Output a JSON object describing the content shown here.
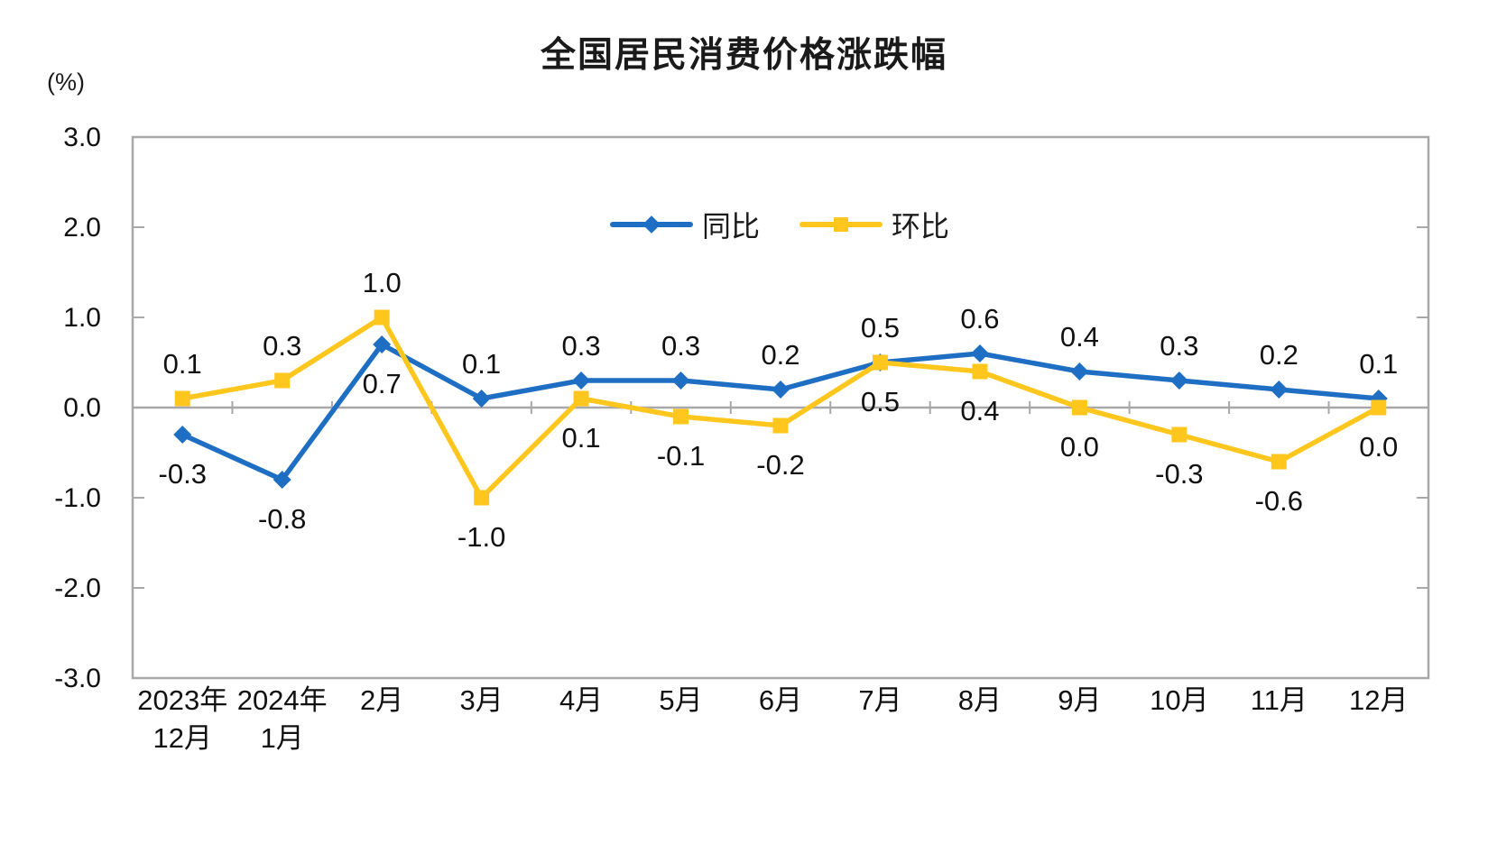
{
  "title": "全国居民消费价格涨跌幅",
  "unit_label": "(%)",
  "colors": {
    "yoy_blue": "#1E6EC3",
    "mom_yellow": "#FFC61E",
    "axis_gray": "#A8A8A8",
    "text_black": "#111111"
  },
  "legend": {
    "items": [
      {
        "label": "同比",
        "marker": "diamond"
      },
      {
        "label": "环比",
        "marker": "square"
      }
    ]
  },
  "chart_data": {
    "type": "line",
    "title": "全国居民消费价格涨跌幅",
    "ylabel": "(%)",
    "xlabel": "",
    "ylim": [
      -3.0,
      3.0
    ],
    "yticks": [
      "3.0",
      "2.0",
      "1.0",
      "0.0",
      "-1.0",
      "-2.0",
      "-3.0"
    ],
    "grid": false,
    "legend_position": "top-center-inside",
    "categories": [
      "2023年\n12月",
      "2024年\n1月",
      "2月",
      "3月",
      "4月",
      "5月",
      "6月",
      "7月",
      "8月",
      "9月",
      "10月",
      "11月",
      "12月"
    ],
    "series": [
      {
        "name": "同比",
        "marker": "diamond",
        "color": "#1E6EC3",
        "values": [
          -0.3,
          -0.8,
          0.7,
          0.1,
          0.3,
          0.3,
          0.2,
          0.5,
          0.6,
          0.4,
          0.3,
          0.2,
          0.1
        ],
        "label_positions": [
          "below",
          "below",
          "below",
          "above",
          "above",
          "above",
          "above",
          "above",
          "above",
          "above",
          "above",
          "above",
          "above"
        ]
      },
      {
        "name": "环比",
        "marker": "square",
        "color": "#FFC61E",
        "values": [
          0.1,
          0.3,
          1.0,
          -1.0,
          0.1,
          -0.1,
          -0.2,
          0.5,
          0.4,
          0.0,
          -0.3,
          -0.6,
          0.0
        ],
        "label_positions": [
          "above",
          "above",
          "above",
          "below",
          "below",
          "below",
          "below",
          "below",
          "below",
          "below",
          "below",
          "below",
          "below"
        ]
      }
    ]
  }
}
